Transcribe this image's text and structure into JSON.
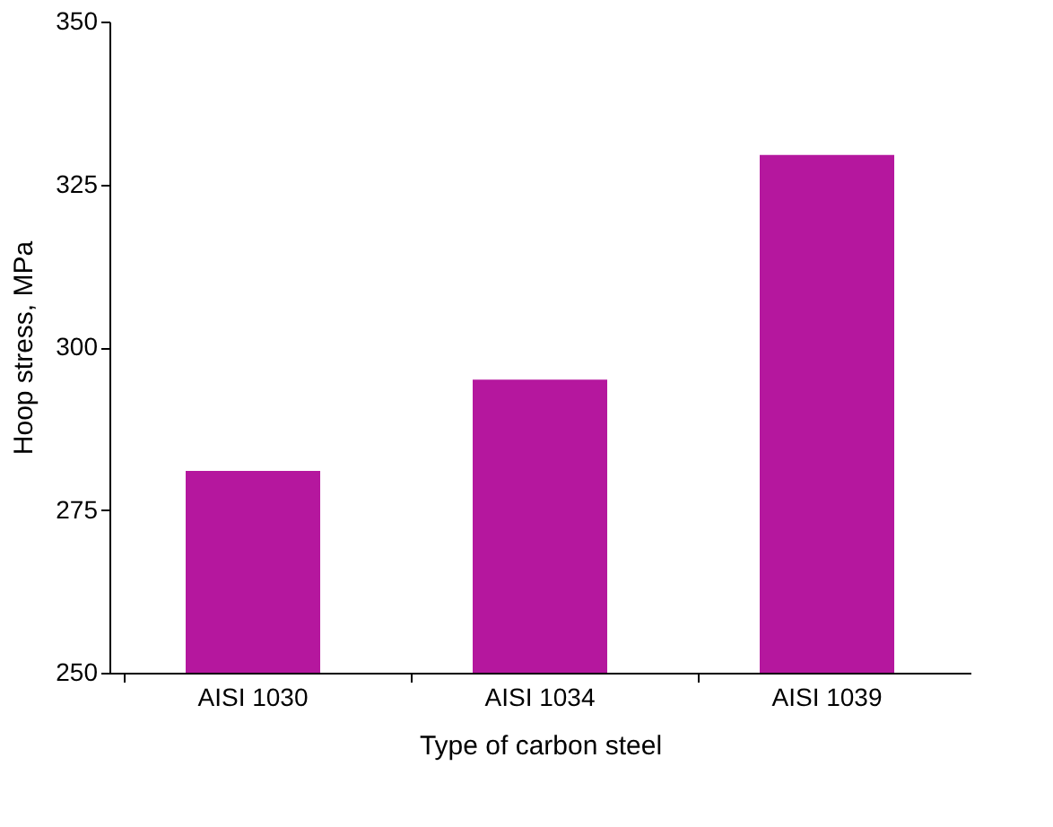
{
  "chart_data": {
    "type": "bar",
    "xlabel": "Type of carbon steel",
    "ylabel": "Hoop stress, MPa",
    "categories": [
      "AISI 1030",
      "AISI 1034",
      "AISI 1039"
    ],
    "values": [
      281,
      295,
      329.5
    ],
    "color": "#b5179e",
    "ylim": [
      250,
      350
    ],
    "yticks": [
      250,
      275,
      300,
      325,
      350
    ],
    "grid": false
  }
}
